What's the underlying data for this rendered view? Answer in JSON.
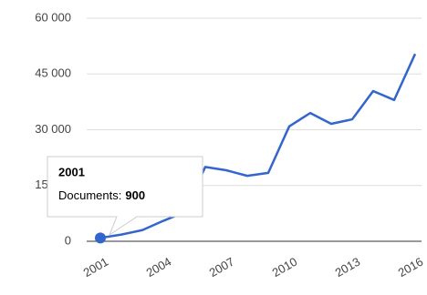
{
  "chart_data": {
    "type": "line",
    "categories": [
      "2001",
      null,
      null,
      "2004",
      null,
      null,
      "2007",
      null,
      null,
      "2010",
      null,
      null,
      "2013",
      null,
      null,
      "2016"
    ],
    "series": [
      {
        "name": "Documents",
        "color": "#3366cc",
        "values": [
          900,
          1800,
          3000,
          5500,
          7800,
          20000,
          19100,
          17600,
          18400,
          30900,
          34500,
          31600,
          32800,
          40400,
          38000,
          50400
        ]
      }
    ],
    "ylim": [
      0,
      60000
    ],
    "yticks": [
      0,
      {
        "value": 15000,
        "label": "15 000"
      },
      {
        "value": 30000,
        "label": "30 000"
      },
      {
        "value": 45000,
        "label": "45 000"
      },
      {
        "value": 60000,
        "label": "60 000"
      }
    ],
    "grid": true,
    "tooltip": {
      "label": "Documents:"
    }
  }
}
